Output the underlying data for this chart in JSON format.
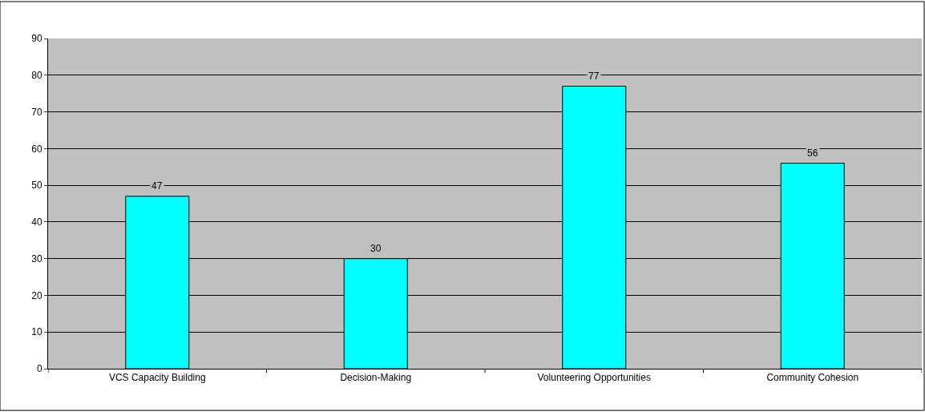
{
  "chart_data": {
    "type": "bar",
    "categories": [
      "VCS Capacity Building",
      "Decision-Making",
      "Volunteering Opportunities",
      "Community Cohesion"
    ],
    "values": [
      47,
      30,
      77,
      56
    ],
    "color": "#00ffff",
    "ylim": [
      0,
      90
    ],
    "yticks": [
      0,
      10,
      20,
      30,
      40,
      50,
      60,
      70,
      80,
      90
    ],
    "grid": "y",
    "data_labels": true
  }
}
